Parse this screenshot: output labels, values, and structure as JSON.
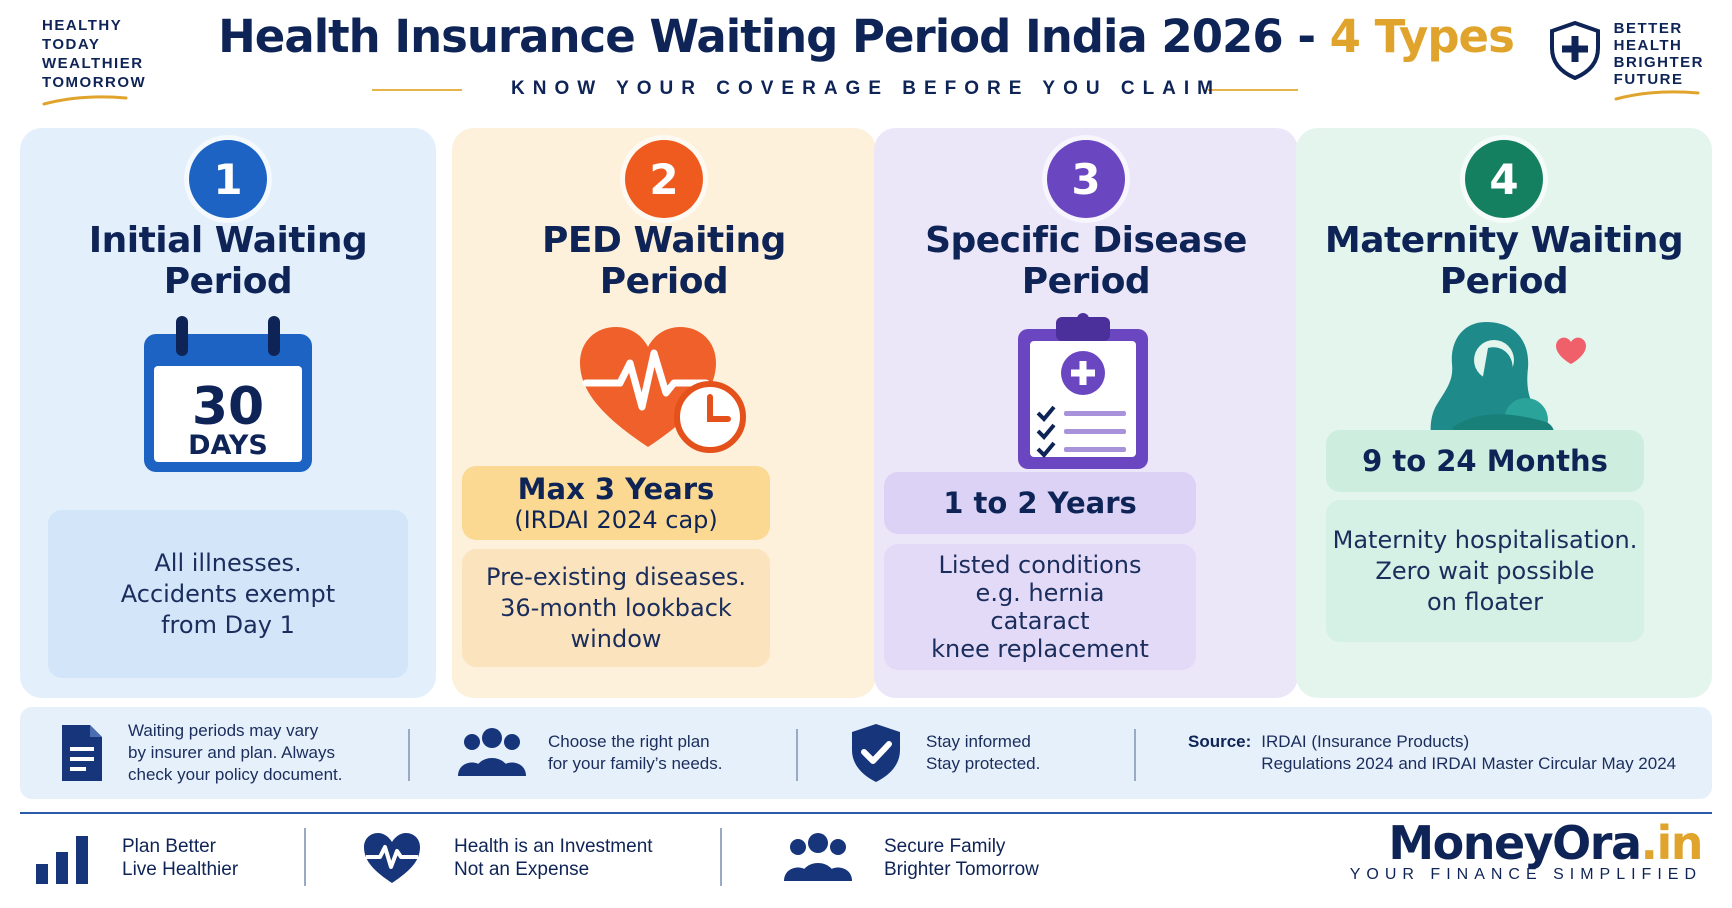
{
  "header": {
    "brand_left_lines": [
      "HEALTHY",
      "TODAY",
      "WEALTHIER",
      "TOMORROW"
    ],
    "title_main": "Health Insurance Waiting Period India 2026 - ",
    "title_accent": "4 Types",
    "subtitle": "KNOW YOUR COVERAGE BEFORE YOU CLAIM",
    "brand_right_lines": [
      "BETTER",
      "HEALTH",
      "BRIGHTER",
      "FUTURE"
    ]
  },
  "colors": {
    "navy": "#0f2456",
    "gold": "#e0a42c",
    "blue": "#1c63c4",
    "orange": "#ef5b1e",
    "purple": "#6b46c1",
    "green": "#15805f"
  },
  "cards": [
    {
      "number": "1",
      "title_line1": "Initial Waiting",
      "title_line2": "Period",
      "icon": "calendar-icon",
      "icon_number": "30",
      "icon_unit": "DAYS",
      "desc_lines": [
        "All illnesses.",
        "Accidents exempt",
        "from Day 1"
      ]
    },
    {
      "number": "2",
      "title_line1": "PED Waiting",
      "title_line2": "Period",
      "icon": "heart-clock-icon",
      "highlight": "Max 3 Years",
      "highlight_sub": "(IRDAI 2024 cap)",
      "desc_lines": [
        "Pre-existing diseases.",
        "36-month lookback",
        "window"
      ]
    },
    {
      "number": "3",
      "title_line1": "Specific Disease",
      "title_line2": "Period",
      "icon": "clipboard-checklist-icon",
      "highlight": "1 to 2 Years",
      "desc_lines": [
        "Listed conditions",
        "e.g. hernia",
        "cataract",
        "knee replacement"
      ]
    },
    {
      "number": "4",
      "title_line1": "Maternity Waiting",
      "title_line2": "Period",
      "icon": "mother-baby-icon",
      "highlight": "9 to 24 Months",
      "desc_lines": [
        "Maternity hospitalisation.",
        "Zero wait possible",
        "on floater"
      ]
    }
  ],
  "strip": {
    "note_lines": [
      "Waiting periods may vary",
      "by insurer and plan. Always",
      "check your policy document."
    ],
    "plan_lines": [
      "Choose the right plan",
      "for your family’s needs."
    ],
    "protect_lines": [
      "Stay informed",
      "Stay protected."
    ],
    "source_label": "Source:",
    "source_lines": [
      "IRDAI (Insurance Products)",
      "Regulations 2024 and IRDAI Master Circular May 2024"
    ]
  },
  "footer": {
    "item1_lines": [
      "Plan Better",
      "Live Healthier"
    ],
    "item2_lines": [
      "Health is an Investment",
      "Not an Expense"
    ],
    "item3_lines": [
      "Secure Family",
      "Brighter Tomorrow"
    ],
    "logo_name": "MoneyOra",
    "logo_tld": ".in",
    "logo_tag": "YOUR FINANCE SIMPLIFIED"
  }
}
